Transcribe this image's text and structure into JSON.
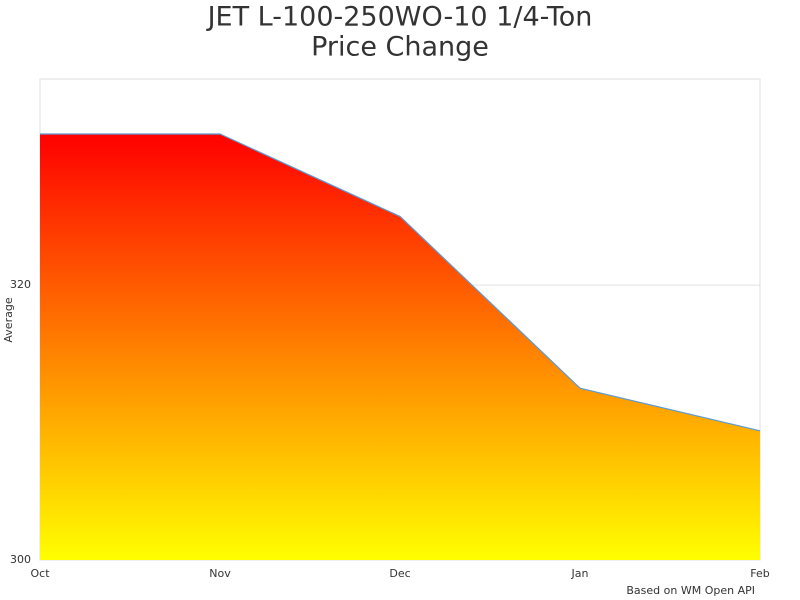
{
  "chart_data": {
    "type": "area",
    "title": [
      "JET L-100-250WO-10 1/4-Ton",
      "Price Change"
    ],
    "y_label": "Average",
    "credit": "Based on WM Open API",
    "categories": [
      "Oct",
      "Nov",
      "Dec",
      "Jan",
      "Feb"
    ],
    "series": [
      {
        "values": [
          331,
          331,
          325,
          312.5,
          309.4
        ],
        "color": "#5b9bd5",
        "gradient": [
          "#ff0000",
          "#ffff00"
        ]
      }
    ],
    "ylim": [
      300,
      335
    ],
    "yticks": [
      300,
      320
    ],
    "grid": true
  }
}
